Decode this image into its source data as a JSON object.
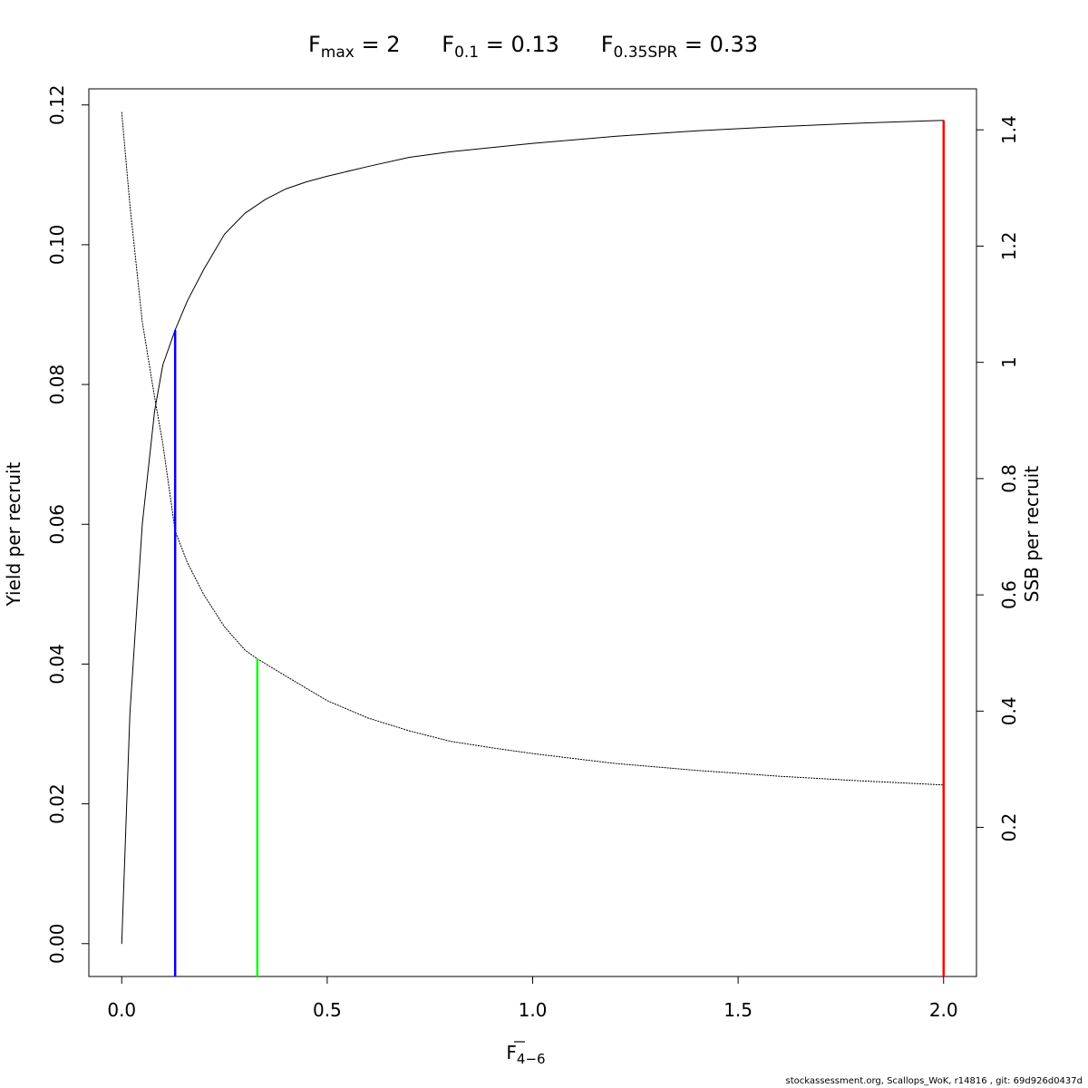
{
  "chart_data": {
    "type": "line",
    "title": {
      "fmax": {
        "base": "F",
        "sub": "max",
        "value": "2"
      },
      "f01": {
        "base": "F",
        "sub": "0.1",
        "value": "0.13"
      },
      "fspr": {
        "base": "F",
        "sub": "0.35SPR",
        "value": "0.33"
      }
    },
    "xlabel": {
      "base": "F",
      "sub": "4−6"
    },
    "ylabel": "Yield per recruit",
    "y2label": "SSB per recruit",
    "xlim": [
      -0.08,
      2.08
    ],
    "ylim": [
      -0.0047,
      0.1223
    ],
    "y2lim": [
      -0.0565,
      1.4705
    ],
    "x_ticks": [
      0.0,
      0.5,
      1.0,
      1.5,
      2.0
    ],
    "x_tick_labels": [
      "0.0",
      "0.5",
      "1.0",
      "1.5",
      "2.0"
    ],
    "y_ticks": [
      0.0,
      0.02,
      0.04,
      0.06,
      0.08,
      0.1,
      0.12
    ],
    "y_tick_labels": [
      "0.00",
      "0.02",
      "0.04",
      "0.06",
      "0.08",
      "0.10",
      "0.12"
    ],
    "y2_ticks": [
      0.2,
      0.4,
      0.6,
      0.8,
      1.0,
      1.2,
      1.4
    ],
    "y2_tick_labels": [
      "0.2",
      "0.4",
      "0.6",
      "0.8",
      "1",
      "1.2",
      "1.4"
    ],
    "series": [
      {
        "role": "yield-per-recruit",
        "axis": "left",
        "style": "solid",
        "color": "#000000",
        "x": [
          0,
          0.02,
          0.05,
          0.08,
          0.1,
          0.13,
          0.16,
          0.2,
          0.25,
          0.3,
          0.35,
          0.4,
          0.45,
          0.5,
          0.6,
          0.7,
          0.8,
          0.9,
          1.0,
          1.2,
          1.4,
          1.6,
          1.8,
          2.0
        ],
        "y": [
          0,
          0.033,
          0.06,
          0.0762,
          0.0828,
          0.0878,
          0.092,
          0.0965,
          0.1015,
          0.1045,
          0.1065,
          0.108,
          0.109,
          0.1098,
          0.1112,
          0.1125,
          0.1133,
          0.1139,
          0.1145,
          0.1155,
          0.1163,
          0.1169,
          0.1174,
          0.1178
        ]
      },
      {
        "role": "ssb-per-recruit",
        "axis": "right",
        "style": "dotted",
        "color": "#000000",
        "x": [
          0,
          0.02,
          0.05,
          0.08,
          0.1,
          0.13,
          0.16,
          0.2,
          0.25,
          0.3,
          0.33,
          0.4,
          0.5,
          0.6,
          0.7,
          0.8,
          0.9,
          1.0,
          1.2,
          1.4,
          1.6,
          1.8,
          2.0
        ],
        "y": [
          1.43,
          1.27,
          1.07,
          0.94,
          0.86,
          0.71,
          0.655,
          0.6,
          0.545,
          0.505,
          0.49,
          0.46,
          0.418,
          0.388,
          0.366,
          0.348,
          0.337,
          0.327,
          0.31,
          0.298,
          0.288,
          0.28,
          0.273
        ]
      }
    ],
    "reference_lines": [
      {
        "name": "Fmax",
        "x": 2.0,
        "y_top": 0.1178,
        "color": "#ff0000"
      },
      {
        "name": "F0.1",
        "x": 0.13,
        "y_top": 0.0878,
        "color": "#0000ff"
      },
      {
        "name": "F0.35SPR",
        "x": 0.33,
        "y_top_ssb": 0.49,
        "color": "#00ff00"
      }
    ],
    "grid": false,
    "legend": "none"
  },
  "footer": "stockassessment.org, Scallops_WoK, r14816 , git: 69d926d0437d"
}
